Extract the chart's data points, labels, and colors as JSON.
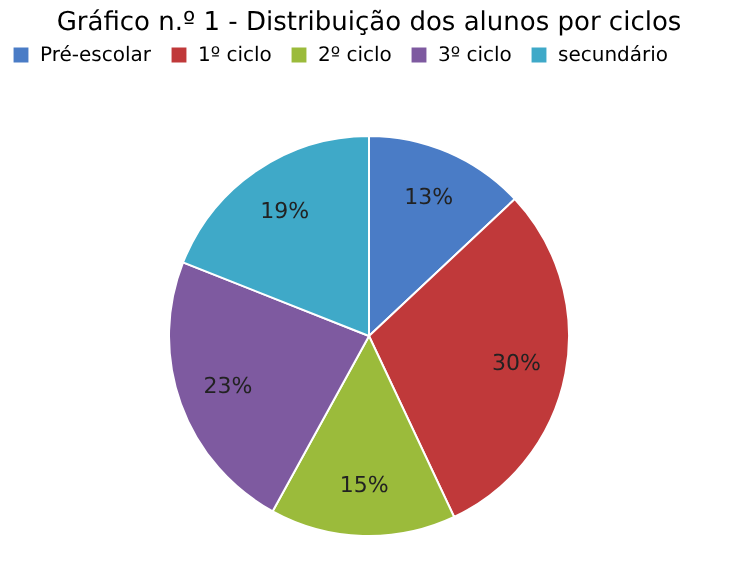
{
  "chart_data": {
    "type": "pie",
    "title": "Gráfico n.º 1 - Distribuição dos alunos por  ciclos",
    "categories": [
      "Pré-escolar",
      "1º ciclo",
      "2º ciclo",
      "3º ciclo",
      "secundário"
    ],
    "values": [
      13,
      30,
      15,
      23,
      19
    ],
    "colors": [
      "#4a7cc6",
      "#c0393a",
      "#9bbb3b",
      "#7e5aa0",
      "#3fa9c8"
    ],
    "value_labels": [
      "13%",
      "30%",
      "15%",
      "23%",
      "19%"
    ],
    "legend": "top"
  }
}
